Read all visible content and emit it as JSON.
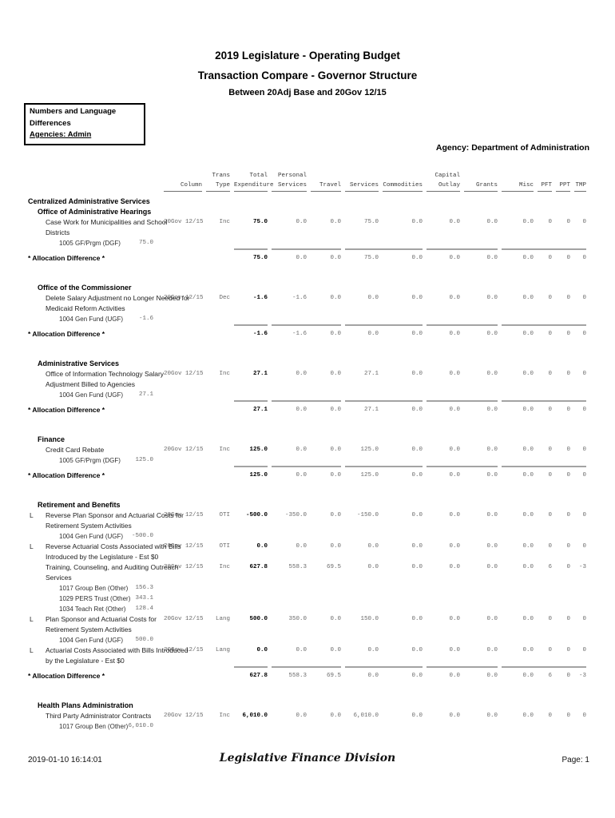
{
  "title": {
    "line1": "2019 Legislature - Operating Budget",
    "line2": "Transaction Compare - Governor Structure",
    "line3": "Between 20Adj Base and 20Gov 12/15"
  },
  "info_box": {
    "line1": "Numbers and Language",
    "line2": "Differences",
    "line3": "Agencies: Admin"
  },
  "agency_line": "Agency: Department of Administration",
  "colors": {
    "ink": "#000000",
    "muted_number": "#6a6a6a",
    "rule_line": "#a3a3a3"
  },
  "table": {
    "lang_marker": "L",
    "columns": [
      {
        "id": "column",
        "l1": "",
        "l2": "Column"
      },
      {
        "id": "trans-type",
        "l1": "Trans",
        "l2": "Type"
      },
      {
        "id": "total-expenditure",
        "l1": "Total",
        "l2": "Expenditure"
      },
      {
        "id": "personal-services",
        "l1": "Personal",
        "l2": "Services"
      },
      {
        "id": "travel",
        "l1": "",
        "l2": "Travel"
      },
      {
        "id": "services",
        "l1": "",
        "l2": "Services"
      },
      {
        "id": "commodities",
        "l1": "",
        "l2": "Commodities"
      },
      {
        "id": "capital-outlay",
        "l1": "Capital",
        "l2": "Outlay"
      },
      {
        "id": "grants",
        "l1": "",
        "l2": "Grants"
      },
      {
        "id": "misc",
        "l1": "",
        "l2": "Misc"
      },
      {
        "id": "pft",
        "l1": "",
        "l2": "PFT"
      },
      {
        "id": "ppt",
        "l1": "",
        "l2": "PPT"
      },
      {
        "id": "tmp",
        "l1": "",
        "l2": "TMP"
      }
    ],
    "rows": [
      {
        "t": "h1",
        "label": "Centralized Administrative Services"
      },
      {
        "t": "h2",
        "label": "Office of Administrative Hearings"
      },
      {
        "t": "detail",
        "lang": false,
        "desc": [
          "Case Work for Municipalities and School",
          "Districts"
        ],
        "column": "20Gov 12/15",
        "trans": "Inc",
        "v": [
          "75.0",
          "0.0",
          "0.0",
          "75.0",
          "0.0",
          "0.0",
          "0.0",
          "0.0",
          "0",
          "0",
          "0"
        ]
      },
      {
        "t": "fund",
        "name": "1005 GF/Prgm (DGF)",
        "amount": "75.0"
      },
      {
        "t": "rule"
      },
      {
        "t": "alloc",
        "label": "* Allocation Difference *",
        "v": [
          "75.0",
          "0.0",
          "0.0",
          "75.0",
          "0.0",
          "0.0",
          "0.0",
          "0.0",
          "0",
          "0",
          "0"
        ]
      },
      {
        "t": "spacer"
      },
      {
        "t": "h2",
        "label": "Office of the Commissioner"
      },
      {
        "t": "detail",
        "lang": false,
        "desc": [
          "Delete Salary Adjustment no Longer Needed for",
          "Medicaid Reform Activities"
        ],
        "column": "20Gov 12/15",
        "trans": "Dec",
        "v": [
          "-1.6",
          "-1.6",
          "0.0",
          "0.0",
          "0.0",
          "0.0",
          "0.0",
          "0.0",
          "0",
          "0",
          "0"
        ]
      },
      {
        "t": "fund",
        "name": "1004 Gen Fund (UGF)",
        "amount": "-1.6"
      },
      {
        "t": "rule"
      },
      {
        "t": "alloc",
        "label": "* Allocation Difference *",
        "v": [
          "-1.6",
          "-1.6",
          "0.0",
          "0.0",
          "0.0",
          "0.0",
          "0.0",
          "0.0",
          "0",
          "0",
          "0"
        ]
      },
      {
        "t": "spacer"
      },
      {
        "t": "h2",
        "label": "Administrative Services"
      },
      {
        "t": "detail",
        "lang": false,
        "desc": [
          "Office of Information Technology Salary",
          "Adjustment Billed to Agencies"
        ],
        "column": "20Gov 12/15",
        "trans": "Inc",
        "v": [
          "27.1",
          "0.0",
          "0.0",
          "27.1",
          "0.0",
          "0.0",
          "0.0",
          "0.0",
          "0",
          "0",
          "0"
        ]
      },
      {
        "t": "fund",
        "name": "1004 Gen Fund (UGF)",
        "amount": "27.1"
      },
      {
        "t": "rule"
      },
      {
        "t": "alloc",
        "label": "* Allocation Difference *",
        "v": [
          "27.1",
          "0.0",
          "0.0",
          "27.1",
          "0.0",
          "0.0",
          "0.0",
          "0.0",
          "0",
          "0",
          "0"
        ]
      },
      {
        "t": "spacer"
      },
      {
        "t": "h2",
        "label": "Finance"
      },
      {
        "t": "detail",
        "lang": false,
        "desc": [
          "Credit Card Rebate"
        ],
        "column": "20Gov 12/15",
        "trans": "Inc",
        "v": [
          "125.0",
          "0.0",
          "0.0",
          "125.0",
          "0.0",
          "0.0",
          "0.0",
          "0.0",
          "0",
          "0",
          "0"
        ]
      },
      {
        "t": "fund",
        "name": "1005 GF/Prgm (DGF)",
        "amount": "125.0"
      },
      {
        "t": "rule"
      },
      {
        "t": "alloc",
        "label": "* Allocation Difference *",
        "v": [
          "125.0",
          "0.0",
          "0.0",
          "125.0",
          "0.0",
          "0.0",
          "0.0",
          "0.0",
          "0",
          "0",
          "0"
        ]
      },
      {
        "t": "spacer"
      },
      {
        "t": "h2",
        "label": "Retirement and Benefits"
      },
      {
        "t": "detail",
        "lang": true,
        "desc": [
          "Reverse Plan Sponsor and Actuarial Costs for",
          "Retirement System Activities"
        ],
        "column": "20Gov 12/15",
        "trans": "OTI",
        "v": [
          "-500.0",
          "-350.0",
          "0.0",
          "-150.0",
          "0.0",
          "0.0",
          "0.0",
          "0.0",
          "0",
          "0",
          "0"
        ]
      },
      {
        "t": "fund",
        "name": "1004 Gen Fund (UGF)",
        "amount": "-500.0"
      },
      {
        "t": "detail",
        "lang": true,
        "desc": [
          "Reverse Actuarial Costs Associated with Bills",
          "Introduced by the Legislature - Est $0"
        ],
        "column": "20Gov 12/15",
        "trans": "OTI",
        "v": [
          "0.0",
          "0.0",
          "0.0",
          "0.0",
          "0.0",
          "0.0",
          "0.0",
          "0.0",
          "0",
          "0",
          "0"
        ]
      },
      {
        "t": "detail",
        "lang": false,
        "desc": [
          "Training, Counseling, and Auditing Outreach",
          "Services"
        ],
        "column": "20Gov 12/15",
        "trans": "Inc",
        "v": [
          "627.8",
          "558.3",
          "69.5",
          "0.0",
          "0.0",
          "0.0",
          "0.0",
          "0.0",
          "6",
          "0",
          "-3"
        ]
      },
      {
        "t": "fund",
        "name": "1017 Group Ben (Other)",
        "amount": "156.3"
      },
      {
        "t": "fund",
        "name": "1029 PERS Trust (Other)",
        "amount": "343.1"
      },
      {
        "t": "fund",
        "name": "1034 Teach Ret (Other)",
        "amount": "128.4"
      },
      {
        "t": "detail",
        "lang": true,
        "desc": [
          "Plan Sponsor and Actuarial Costs for",
          "Retirement System Activities"
        ],
        "column": "20Gov 12/15",
        "trans": "Lang",
        "v": [
          "500.0",
          "350.0",
          "0.0",
          "150.0",
          "0.0",
          "0.0",
          "0.0",
          "0.0",
          "0",
          "0",
          "0"
        ]
      },
      {
        "t": "fund",
        "name": "1004 Gen Fund (UGF)",
        "amount": "500.0"
      },
      {
        "t": "detail",
        "lang": true,
        "desc": [
          "Actuarial Costs Associated with Bills Introduced",
          "by the Legislature - Est $0"
        ],
        "column": "20Gov 12/15",
        "trans": "Lang",
        "v": [
          "0.0",
          "0.0",
          "0.0",
          "0.0",
          "0.0",
          "0.0",
          "0.0",
          "0.0",
          "0",
          "0",
          "0"
        ]
      },
      {
        "t": "rule"
      },
      {
        "t": "alloc",
        "label": "* Allocation Difference *",
        "v": [
          "627.8",
          "558.3",
          "69.5",
          "0.0",
          "0.0",
          "0.0",
          "0.0",
          "0.0",
          "6",
          "0",
          "-3"
        ]
      },
      {
        "t": "spacer"
      },
      {
        "t": "h2",
        "label": "Health Plans Administration"
      },
      {
        "t": "detail",
        "lang": false,
        "desc": [
          "Third Party Administrator Contracts"
        ],
        "column": "20Gov 12/15",
        "trans": "Inc",
        "v": [
          "6,010.0",
          "0.0",
          "0.0",
          "6,010.0",
          "0.0",
          "0.0",
          "0.0",
          "0.0",
          "0",
          "0",
          "0"
        ]
      },
      {
        "t": "fund",
        "name": "1017 Group Ben (Other)",
        "amount": "6,010.0"
      }
    ]
  },
  "footer": {
    "datetime": "2019-01-10 16:14:01",
    "center": "Legislative Finance Division",
    "page": "Page: 1"
  }
}
